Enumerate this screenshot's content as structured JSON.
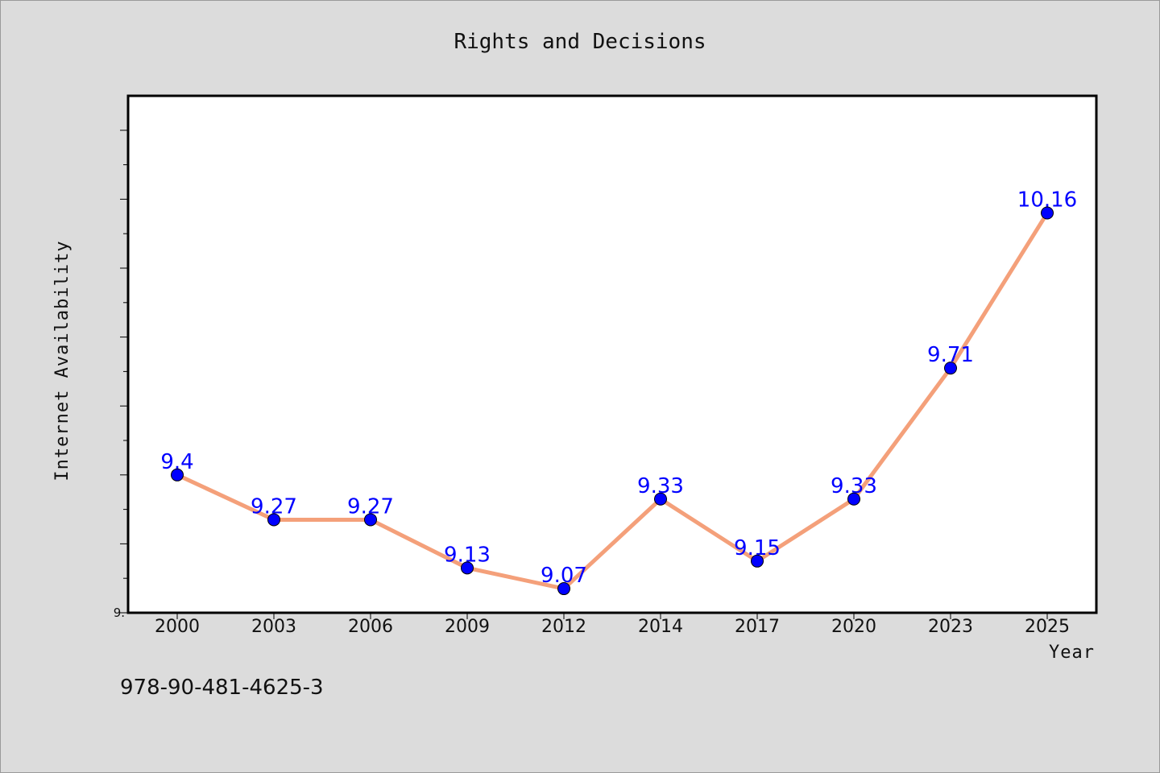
{
  "chart_data": {
    "type": "line",
    "title": "Rights and Decisions",
    "xlabel": "Year",
    "ylabel": "Internet Availability",
    "categories": [
      "2000",
      "2003",
      "2006",
      "2009",
      "2012",
      "2014",
      "2017",
      "2020",
      "2023",
      "2025"
    ],
    "series": [
      {
        "values": [
          9.4,
          9.27,
          9.27,
          9.13,
          9.07,
          9.33,
          9.15,
          9.33,
          9.71,
          10.16
        ],
        "line_color": "#f4a07a",
        "marker_color": "#0000ff"
      }
    ],
    "data_labels": [
      "9.4",
      "9.27",
      "9.27",
      "9.13",
      "9.07",
      "9.33",
      "9.15",
      "9.33",
      "9.71",
      "10.16"
    ],
    "ylim": [
      9.0,
      10.5
    ],
    "y_tick_label": "9.",
    "grid": false,
    "legend": "none"
  },
  "footer": {
    "isbn": "978-90-481-4625-3"
  }
}
